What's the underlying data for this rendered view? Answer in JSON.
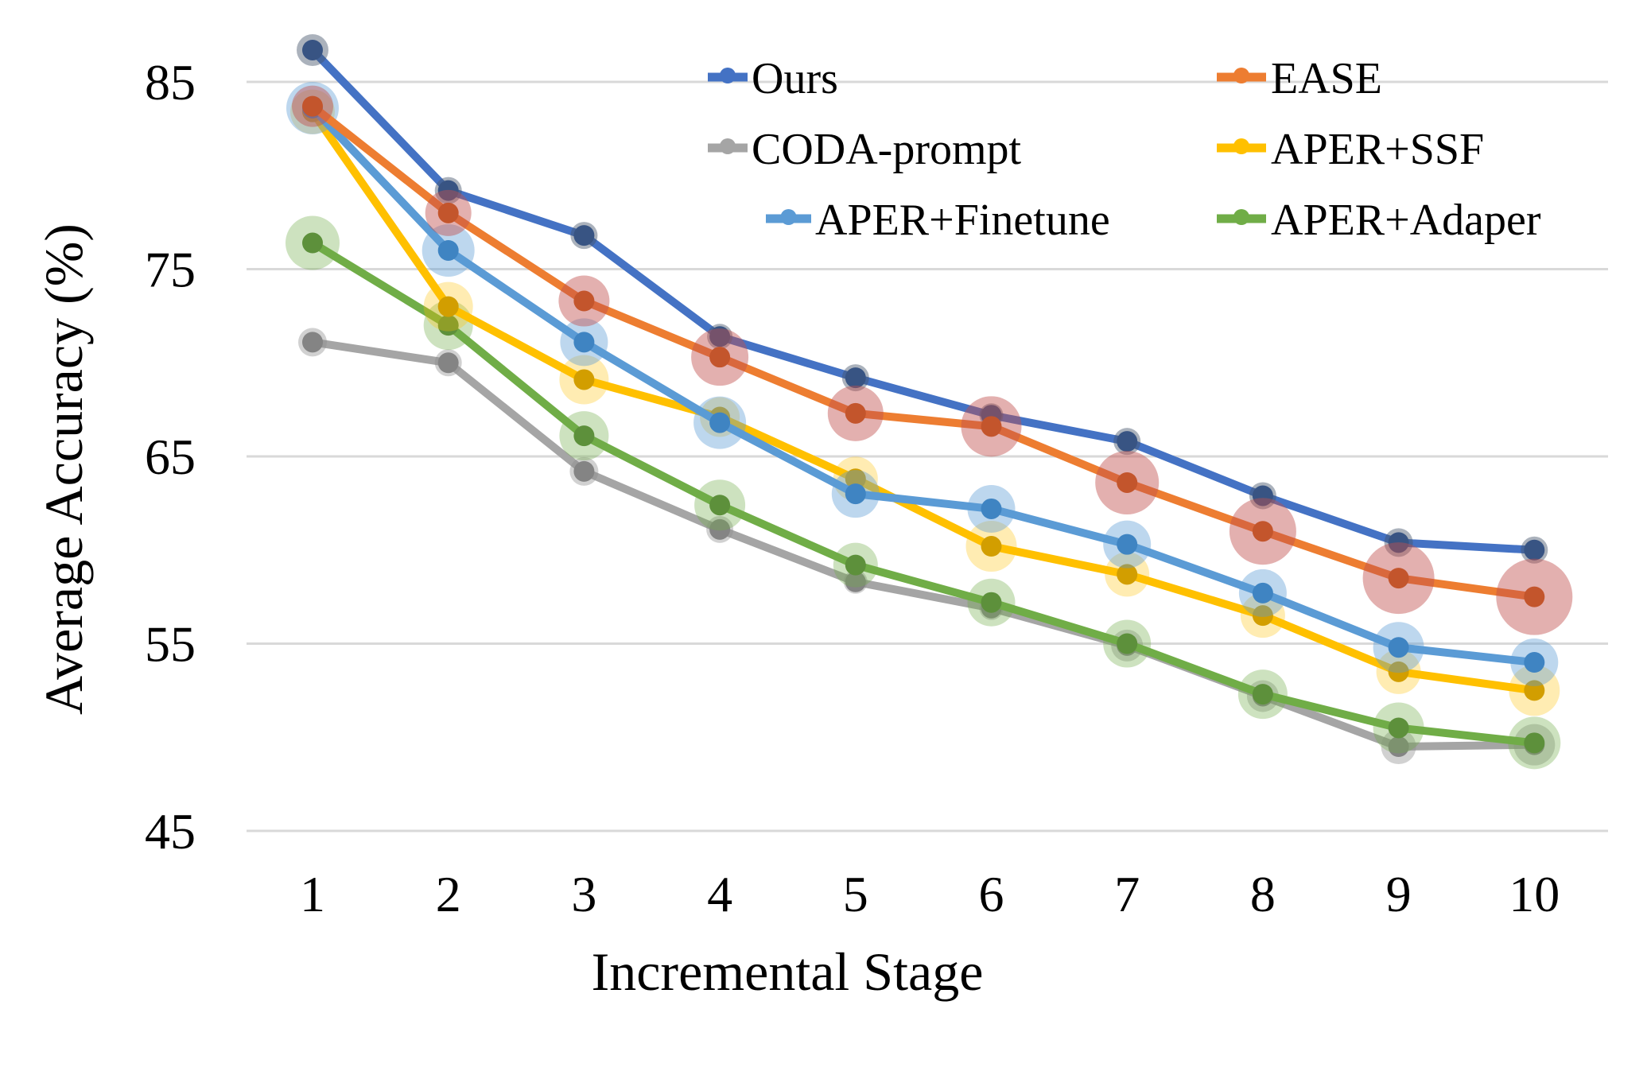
{
  "chart_data": {
    "type": "line",
    "title": "",
    "xlabel": "Incremental Stage",
    "ylabel": "Average Accuracy (%)",
    "categories": [
      1,
      2,
      3,
      4,
      5,
      6,
      7,
      8,
      9,
      10
    ],
    "yticks": [
      45,
      55,
      65,
      75,
      85
    ],
    "ylim": [
      45,
      87.5
    ],
    "grid": "horizontal-only",
    "gridline_color": "#D9D9D9",
    "legend_position": "top-center-two-columns",
    "series": [
      {
        "name": "Ours",
        "line_color": "#4472C4",
        "marker_color": "#2F5597",
        "halo_color": "rgba(68,84,106,0.45)",
        "values": [
          86.7,
          79.2,
          76.8,
          71.4,
          69.2,
          67.2,
          65.8,
          62.9,
          60.4,
          60.0
        ],
        "halo_radii": [
          20,
          17,
          17,
          16,
          17,
          15,
          17,
          17,
          18,
          17
        ]
      },
      {
        "name": "EASE",
        "line_color": "#ED7D31",
        "marker_color": "#C55A11",
        "halo_color": "rgba(192,80,77,0.45)",
        "values": [
          83.7,
          78.0,
          73.3,
          70.3,
          67.3,
          66.6,
          63.6,
          61.0,
          58.5,
          57.5
        ],
        "halo_radii": [
          26,
          29,
          32,
          36,
          35,
          38,
          40,
          42,
          45,
          48
        ]
      },
      {
        "name": "CODA-prompt",
        "line_color": "#A5A5A5",
        "marker_color": "#7F7F7F",
        "halo_color": "rgba(140,140,140,0.40)",
        "values": [
          71.1,
          70.0,
          64.2,
          61.1,
          58.3,
          56.9,
          54.9,
          52.2,
          49.5,
          49.6
        ],
        "halo_radii": [
          18,
          17,
          18,
          17,
          15,
          15,
          20,
          20,
          22,
          26
        ]
      },
      {
        "name": "APER+SSF",
        "line_color": "#FFC000",
        "marker_color": "#BF9000",
        "halo_color": "rgba(255,192,0,0.30)",
        "values": [
          83.4,
          73.0,
          69.1,
          67.1,
          63.8,
          60.2,
          58.7,
          56.5,
          53.5,
          52.5
        ],
        "halo_radii": [
          28,
          31,
          31,
          25,
          28,
          32,
          28,
          28,
          28,
          32
        ]
      },
      {
        "name": "APER+Finetune",
        "line_color": "#5B9BD5",
        "marker_color": "#2E75B6",
        "halo_color": "rgba(91,155,213,0.40)",
        "values": [
          83.6,
          76.0,
          71.1,
          66.8,
          63.0,
          62.2,
          60.3,
          57.7,
          54.8,
          54.0
        ],
        "halo_radii": [
          33,
          33,
          30,
          33,
          30,
          30,
          30,
          30,
          32,
          30
        ]
      },
      {
        "name": "APER+Adaper",
        "line_color": "#70AD47",
        "marker_color": "#538135",
        "halo_color": "rgba(112,173,71,0.35)",
        "values": [
          76.4,
          72.0,
          66.1,
          62.4,
          59.2,
          57.2,
          55.0,
          52.3,
          50.5,
          49.7
        ],
        "halo_radii": [
          34,
          31,
          31,
          32,
          28,
          30,
          30,
          31,
          32,
          33
        ]
      }
    ]
  }
}
